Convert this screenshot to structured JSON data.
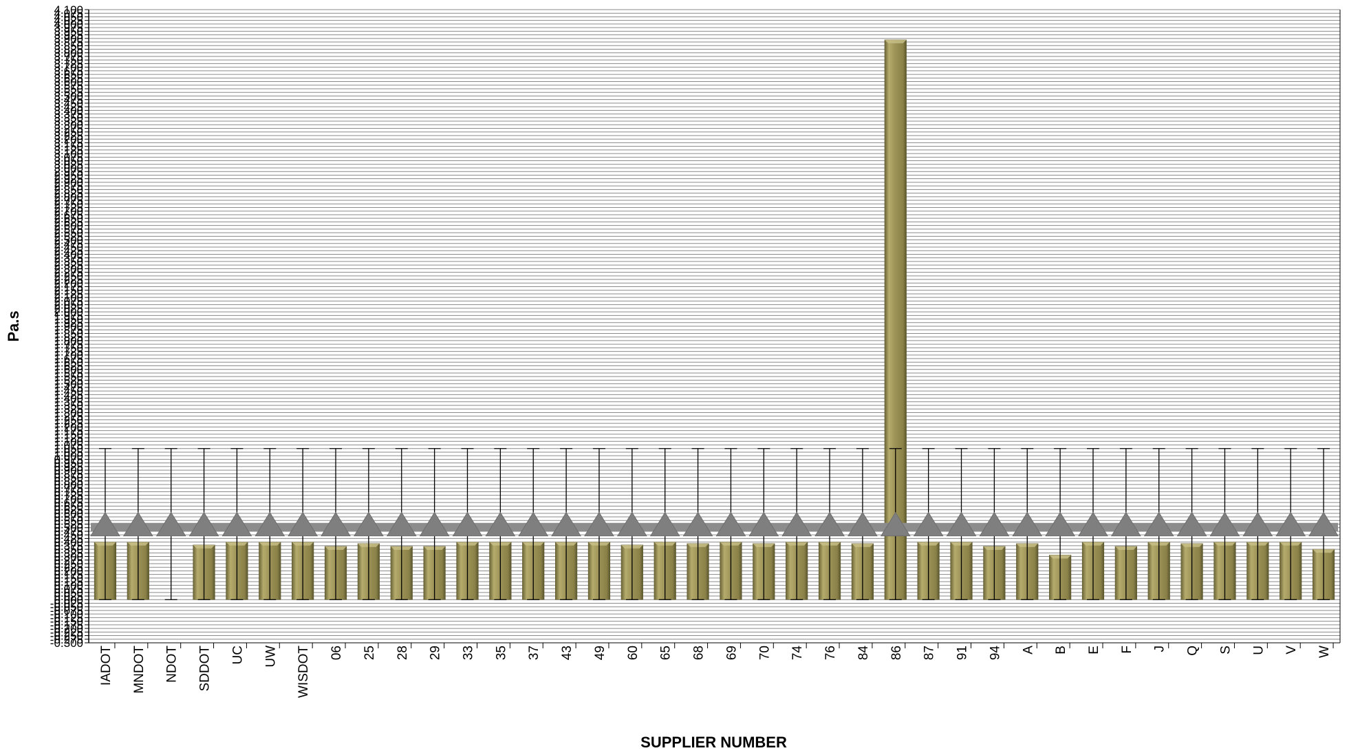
{
  "chart_data": {
    "type": "bar",
    "title": "",
    "xlabel": "SUPPLIER NUMBER",
    "ylabel": "Pa.s",
    "ylim": [
      -0.3,
      4.1
    ],
    "y_tick_step": 0.025,
    "grid": true,
    "legend": "none",
    "categories": [
      "IADOT",
      "MNDOT",
      "NDOT",
      "SDDOT",
      "UC",
      "UW",
      "WISDOT",
      "06",
      "25",
      "28",
      "29",
      "33",
      "35",
      "37",
      "43",
      "49",
      "60",
      "65",
      "68",
      "69",
      "70",
      "74",
      "76",
      "84",
      "86",
      "87",
      "91",
      "94",
      "A",
      "B",
      "E",
      "F",
      "J",
      "Q",
      "S",
      "U",
      "V",
      "W"
    ],
    "values": [
      0.4,
      0.4,
      0.0,
      0.38,
      0.4,
      0.4,
      0.4,
      0.37,
      0.39,
      0.37,
      0.37,
      0.4,
      0.4,
      0.4,
      0.4,
      0.4,
      0.38,
      0.4,
      0.39,
      0.4,
      0.39,
      0.4,
      0.4,
      0.39,
      3.89,
      0.4,
      0.4,
      0.37,
      0.39,
      0.31,
      0.4,
      0.37,
      0.4,
      0.39,
      0.4,
      0.4,
      0.4,
      0.35
    ],
    "error_bar_upper": 1.05,
    "error_bar_lower": 0.0,
    "marker_values": [
      0.5,
      0.5,
      0.5,
      0.5,
      0.5,
      0.5,
      0.5,
      0.5,
      0.5,
      0.5,
      0.5,
      0.5,
      0.5,
      0.5,
      0.5,
      0.5,
      0.5,
      0.5,
      0.5,
      0.5,
      0.5,
      0.5,
      0.5,
      0.5,
      0.5,
      0.5,
      0.5,
      0.5,
      0.5,
      0.5,
      0.5,
      0.5,
      0.5,
      0.5,
      0.5,
      0.5,
      0.5,
      0.5
    ],
    "colors": {
      "bar": "#9c9257",
      "bar_light": "#c9c08a",
      "bar_dark": "#5f5a31",
      "marker": "#7f7f7f",
      "reference_line": "#8c8c8c",
      "grid": "#8a8a8a",
      "axis": "#000000"
    }
  }
}
